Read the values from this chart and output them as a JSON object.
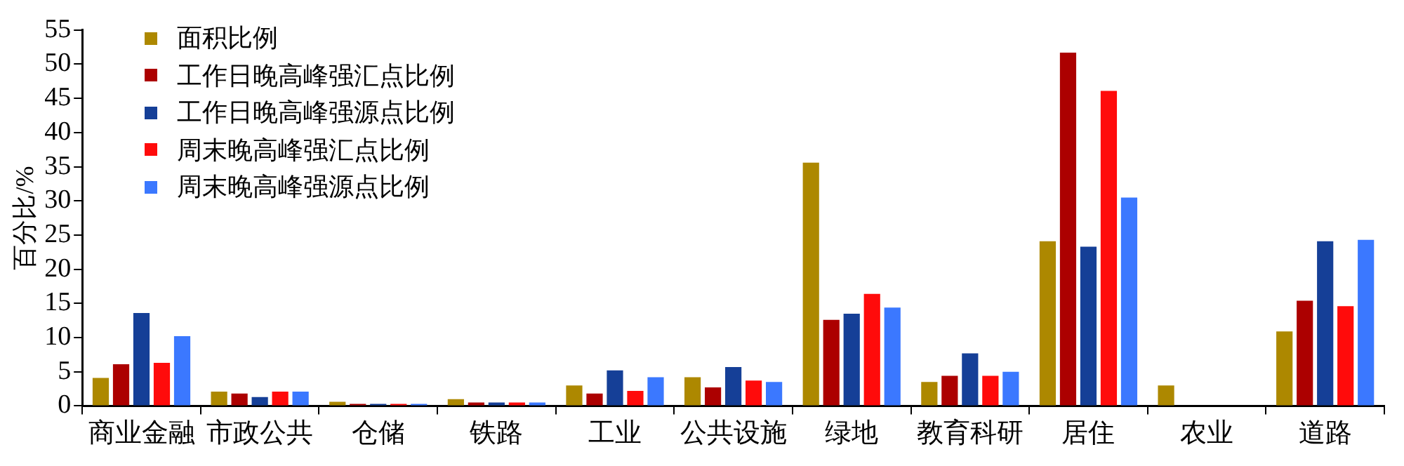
{
  "chart_data": {
    "type": "bar",
    "ylabel": "百分比/%",
    "categories": [
      "商业金融",
      "市政公共",
      "仓储",
      "铁路",
      "工业",
      "公共设施",
      "绿地",
      "教育科研",
      "居住",
      "农业",
      "道路"
    ],
    "series": [
      {
        "name": "面积比例",
        "color": "#ad8800",
        "values": [
          4.1,
          2.1,
          0.6,
          1.0,
          3.0,
          4.2,
          35.6,
          3.5,
          24.1,
          3.0,
          10.9
        ]
      },
      {
        "name": "工作日晚高峰强汇点比例",
        "color": "#ac0000",
        "values": [
          6.1,
          1.8,
          0.3,
          0.5,
          1.8,
          2.7,
          12.6,
          4.4,
          51.7,
          0,
          15.4
        ]
      },
      {
        "name": "工作日晚高峰强源点比例",
        "color": "#153f97",
        "values": [
          13.6,
          1.3,
          0.3,
          0.5,
          5.2,
          5.7,
          13.5,
          7.7,
          23.3,
          0,
          24.1
        ]
      },
      {
        "name": "周末晚高峰强汇点比例",
        "color": "#ff0b0b",
        "values": [
          6.3,
          2.1,
          0.3,
          0.5,
          2.2,
          3.7,
          16.4,
          4.4,
          46.1,
          0,
          14.6
        ]
      },
      {
        "name": "周末晚高峰强源点比例",
        "color": "#3b78ff",
        "values": [
          10.2,
          2.1,
          0.3,
          0.5,
          4.2,
          3.5,
          14.4,
          5.0,
          30.5,
          0,
          24.3
        ]
      }
    ],
    "ylim": [
      0,
      55
    ],
    "yticks": [
      0,
      5,
      10,
      15,
      20,
      25,
      30,
      35,
      40,
      45,
      50,
      55
    ],
    "grid": false,
    "legend": "top left"
  }
}
